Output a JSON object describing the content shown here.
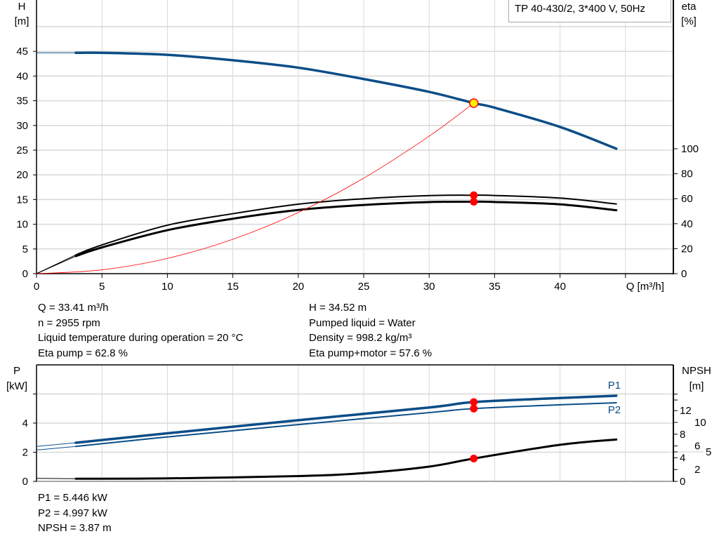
{
  "colors": {
    "head": "#0b4d87",
    "power": "#0b4d87",
    "efficiency": "#000000",
    "system": "#ff0000",
    "duty_marker": "#ff0000",
    "duty_head_marker": "#ffee00",
    "grid": "#d8d8d8"
  },
  "title": "TP 40-430/2, 3*400 V, 50Hz",
  "chart_data": [
    {
      "type": "line",
      "xlabel": "Q [m³/h]",
      "ylabel": "H\n[m]",
      "ylabel_lines": [
        "H",
        "[m]"
      ],
      "y2label_lines": [
        "eta",
        "[%]"
      ],
      "xlim": [
        0,
        48.7
      ],
      "ylim": [
        0,
        55
      ],
      "y2lim": [
        0,
        309
      ],
      "x_ticks": [
        0,
        5,
        10,
        15,
        20,
        25,
        30,
        35,
        40
      ],
      "y_ticks": [
        0,
        5,
        10,
        15,
        20,
        25,
        30,
        35,
        40,
        45
      ],
      "y2_ticks": [
        0,
        20,
        40,
        60,
        80,
        100
      ],
      "grid": true,
      "series": [
        {
          "key": "head",
          "axis": "y",
          "points": [
            [
              3,
              44.7
            ],
            [
              5,
              44.7
            ],
            [
              10,
              44.3
            ],
            [
              15,
              43.2
            ],
            [
              20,
              41.7
            ],
            [
              25,
              39.4
            ],
            [
              30,
              36.8
            ],
            [
              33.41,
              34.52
            ],
            [
              35,
              33.6
            ],
            [
              40,
              29.7
            ],
            [
              44.3,
              25.3
            ]
          ],
          "extension": [
            [
              0,
              44.7
            ],
            [
              3,
              44.7
            ]
          ]
        },
        {
          "key": "eta_pump",
          "axis": "y2",
          "points": [
            [
              3,
              15
            ],
            [
              5,
              23
            ],
            [
              10,
              38.8
            ],
            [
              15,
              48
            ],
            [
              20,
              55.6
            ],
            [
              25,
              60
            ],
            [
              30,
              62.5
            ],
            [
              33.41,
              62.8
            ],
            [
              35,
              62.6
            ],
            [
              40,
              60.5
            ],
            [
              44.3,
              55.8
            ]
          ],
          "extension": [
            [
              0,
              0
            ],
            [
              3,
              15
            ]
          ]
        },
        {
          "key": "eta_total",
          "axis": "y2",
          "points": [
            [
              3,
              14
            ],
            [
              5,
              21
            ],
            [
              10,
              34.8
            ],
            [
              15,
              44
            ],
            [
              20,
              51
            ],
            [
              25,
              55
            ],
            [
              30,
              57.3
            ],
            [
              33.41,
              57.6
            ],
            [
              35,
              57.4
            ],
            [
              40,
              55.5
            ],
            [
              44.3,
              50.8
            ]
          ],
          "extension": [
            [
              0,
              0
            ],
            [
              3,
              14
            ]
          ]
        },
        {
          "key": "system",
          "axis": "y",
          "points": [
            [
              0,
              0
            ],
            [
              5,
              0.77
            ],
            [
              10,
              3.09
            ],
            [
              15,
              6.96
            ],
            [
              20,
              12.37
            ],
            [
              25,
              19.33
            ],
            [
              30,
              27.83
            ],
            [
              33.41,
              34.52
            ]
          ]
        }
      ],
      "duty_point": {
        "Q": 33.41,
        "H": 34.52,
        "eta_pump": 62.8,
        "eta_total": 57.6
      }
    },
    {
      "type": "line",
      "xlabel": "",
      "ylabel_lines": [
        "P",
        "[kW]"
      ],
      "y2label_lines": [
        "NPSH",
        "[m]"
      ],
      "xlim": [
        0,
        48.7
      ],
      "ylim": [
        0,
        8.1
      ],
      "y2lim": [
        0,
        20
      ],
      "y_ticks": [
        0,
        2,
        4
      ],
      "y2_ticks": [
        0,
        2,
        4,
        5,
        6,
        8,
        10,
        12
      ],
      "grid": true,
      "series": [
        {
          "name": "P1",
          "axis": "y",
          "points": [
            [
              3,
              2.65
            ],
            [
              10,
              3.3
            ],
            [
              20,
              4.2
            ],
            [
              30,
              5.07
            ],
            [
              33.41,
              5.446
            ],
            [
              40,
              5.72
            ],
            [
              44.3,
              5.88
            ]
          ],
          "extension": [
            [
              0,
              2.4
            ],
            [
              3,
              2.65
            ]
          ]
        },
        {
          "name": "P2",
          "axis": "y",
          "points": [
            [
              3,
              2.4
            ],
            [
              10,
              3.05
            ],
            [
              20,
              3.9
            ],
            [
              30,
              4.72
            ],
            [
              33.41,
              4.997
            ],
            [
              40,
              5.26
            ],
            [
              44.3,
              5.4
            ]
          ],
          "extension": [
            [
              0,
              2.15
            ],
            [
              3,
              2.4
            ]
          ]
        },
        {
          "key": "npsh",
          "axis": "y2",
          "points": [
            [
              3,
              0.45
            ],
            [
              10,
              0.5
            ],
            [
              20,
              0.9
            ],
            [
              25,
              1.4
            ],
            [
              30,
              2.5
            ],
            [
              33.41,
              3.87
            ],
            [
              40,
              6.2
            ],
            [
              44.3,
              7.1
            ]
          ],
          "extension": [
            [
              0,
              0.5
            ],
            [
              3,
              0.45
            ]
          ]
        }
      ],
      "duty_point": {
        "Q": 33.41,
        "P1": 5.446,
        "P2": 4.997,
        "NPSH": 3.87
      }
    }
  ],
  "results": {
    "left": [
      "Q = 33.41 m³/h",
      "n = 2955 rpm",
      "Liquid temperature during operation = 20 °C",
      "Eta pump = 62.8 %"
    ],
    "right": [
      "H = 34.52 m",
      "Pumped liquid = Water",
      "Density = 998.2 kg/m³",
      "Eta pump+motor = 57.6 %"
    ],
    "bottom": [
      "P1 = 5.446 kW",
      "P2 = 4.997 kW",
      "NPSH = 3.87 m"
    ]
  }
}
